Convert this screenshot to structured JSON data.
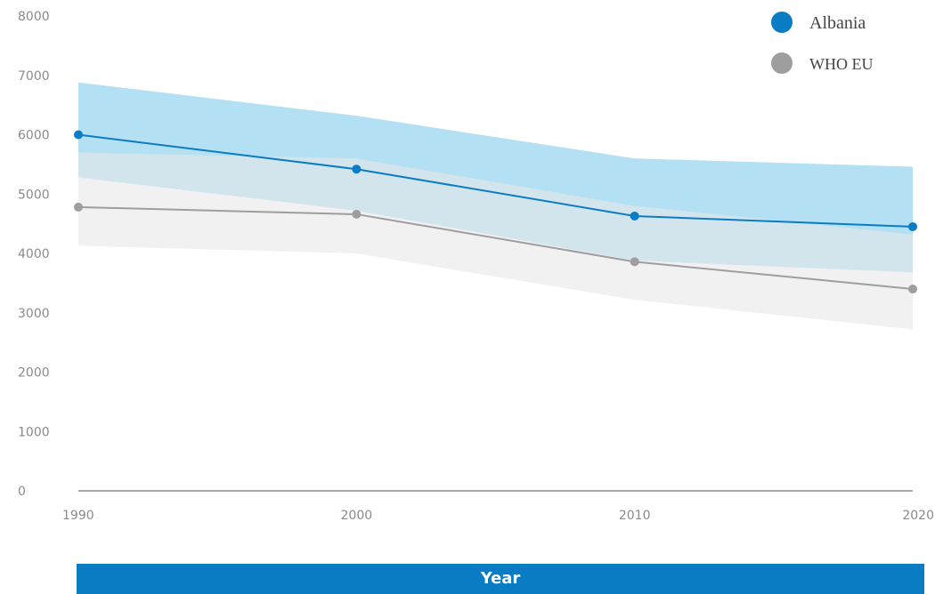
{
  "chart_data": {
    "type": "line",
    "xlabel": "Year",
    "ylabel": "",
    "x": [
      1990,
      2000,
      2010,
      2020
    ],
    "ylim": [
      0,
      8000
    ],
    "yticks": [
      0,
      1000,
      2000,
      3000,
      4000,
      5000,
      6000,
      7000,
      8000
    ],
    "legend_position": "top-right",
    "series": [
      {
        "name": "Albania",
        "color": "#0a7cc4",
        "band_color": "#b3e0f3",
        "values": [
          6000,
          5420,
          4630,
          4450
        ],
        "lower": [
          5280,
          4720,
          3880,
          3680
        ],
        "upper": [
          6880,
          6320,
          5600,
          5460
        ]
      },
      {
        "name": "WHO EU",
        "color": "#9e9e9e",
        "band_color": "#e8e8e8",
        "values": [
          4780,
          4660,
          3860,
          3400
        ],
        "lower": [
          4130,
          4000,
          3220,
          2720
        ],
        "upper": [
          5700,
          5600,
          4800,
          4320
        ]
      }
    ]
  }
}
